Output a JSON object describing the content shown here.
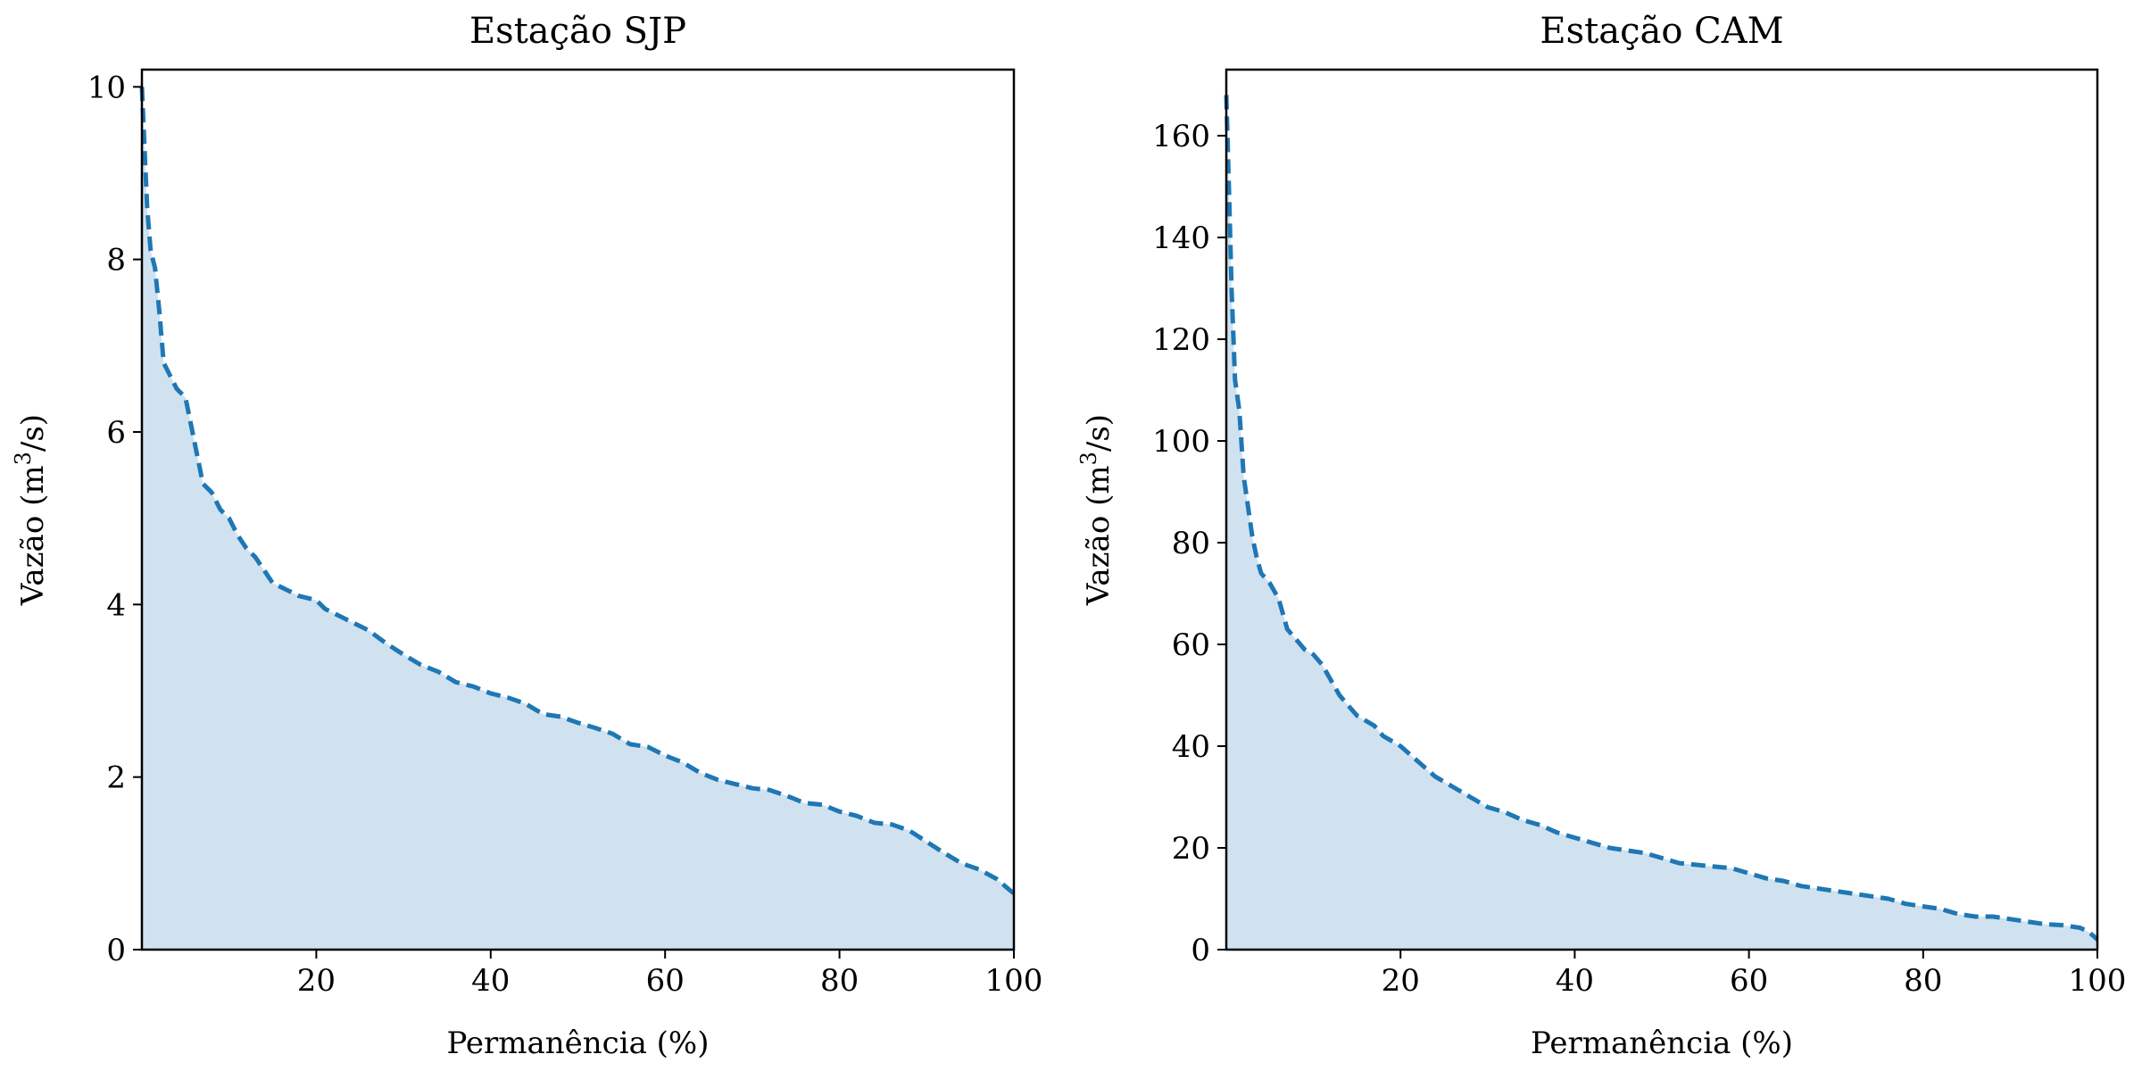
{
  "colors": {
    "line": "#1f77b4",
    "fill": "#d0e2f0"
  },
  "chart_data": [
    {
      "type": "area",
      "title": "Estação SJP",
      "xlabel": "Permanência (%)",
      "ylabel": "Vazão (m³/s)",
      "ylabel_main": "Vazão (m",
      "ylabel_sup": "3",
      "ylabel_end": "/s)",
      "xlim": [
        0,
        100
      ],
      "ylim": [
        0,
        10.2
      ],
      "xticks": [
        20,
        40,
        60,
        80,
        100
      ],
      "yticks": [
        0,
        2,
        4,
        6,
        8,
        10
      ],
      "grid": false,
      "legend": "none",
      "x": [
        0,
        0.3,
        0.6,
        1,
        1.5,
        2,
        2.5,
        3,
        4,
        5,
        6,
        7,
        8,
        9,
        10,
        11,
        12,
        13,
        14,
        15,
        16,
        18,
        20,
        21,
        22,
        24,
        25,
        26,
        28,
        30,
        32,
        34,
        36,
        38,
        40,
        42,
        44,
        46,
        48,
        50,
        52,
        54,
        56,
        58,
        60,
        62,
        64,
        66,
        68,
        70,
        72,
        74,
        76,
        78,
        80,
        82,
        84,
        86,
        88,
        90,
        92,
        94,
        96,
        98,
        100
      ],
      "y": [
        10.0,
        9.3,
        8.6,
        8.1,
        7.9,
        7.4,
        6.8,
        6.7,
        6.5,
        6.4,
        5.9,
        5.4,
        5.3,
        5.1,
        5.0,
        4.8,
        4.65,
        4.55,
        4.4,
        4.25,
        4.2,
        4.1,
        4.05,
        3.95,
        3.9,
        3.8,
        3.75,
        3.7,
        3.55,
        3.42,
        3.3,
        3.22,
        3.1,
        3.05,
        2.97,
        2.92,
        2.85,
        2.73,
        2.7,
        2.63,
        2.57,
        2.5,
        2.38,
        2.35,
        2.25,
        2.17,
        2.05,
        1.97,
        1.92,
        1.87,
        1.85,
        1.78,
        1.7,
        1.68,
        1.6,
        1.55,
        1.47,
        1.45,
        1.38,
        1.25,
        1.12,
        1.0,
        0.93,
        0.82,
        0.65
      ]
    },
    {
      "type": "area",
      "title": "Estação CAM",
      "xlabel": "Permanência (%)",
      "ylabel": "Vazão (m³/s)",
      "ylabel_main": "Vazão (m",
      "ylabel_sup": "3",
      "ylabel_end": "/s)",
      "xlim": [
        0,
        100
      ],
      "ylim": [
        0,
        173
      ],
      "xticks": [
        20,
        40,
        60,
        80,
        100
      ],
      "yticks": [
        0,
        20,
        40,
        60,
        80,
        100,
        120,
        140,
        160
      ],
      "grid": false,
      "legend": "none",
      "x": [
        0,
        0.3,
        0.6,
        1,
        1.5,
        2,
        2.5,
        3,
        3.5,
        4,
        5,
        6,
        7,
        8,
        9,
        10,
        11,
        12,
        13,
        14,
        15,
        16,
        17,
        18,
        20,
        22,
        24,
        26,
        28,
        30,
        32,
        34,
        36,
        38,
        40,
        42,
        44,
        46,
        48,
        50,
        52,
        55,
        58,
        60,
        62,
        64,
        66,
        68,
        70,
        72,
        74,
        76,
        78,
        80,
        82,
        84,
        86,
        88,
        90,
        92,
        94,
        96,
        98,
        99,
        100
      ],
      "y": [
        168,
        150,
        130,
        112,
        106,
        93,
        87,
        81,
        77,
        74,
        72,
        69,
        63,
        61,
        59,
        58,
        56,
        53,
        50,
        48,
        46,
        45,
        44,
        42,
        40,
        37,
        34,
        32,
        30,
        28,
        27,
        25.5,
        24.5,
        23,
        22,
        21,
        20,
        19.5,
        19,
        18,
        17,
        16.5,
        16,
        15,
        14,
        13.5,
        12.5,
        12,
        11.5,
        11,
        10.5,
        10,
        9,
        8.5,
        8,
        7,
        6.5,
        6.5,
        6,
        5.5,
        5,
        4.8,
        4.3,
        3.5,
        2
      ]
    }
  ]
}
